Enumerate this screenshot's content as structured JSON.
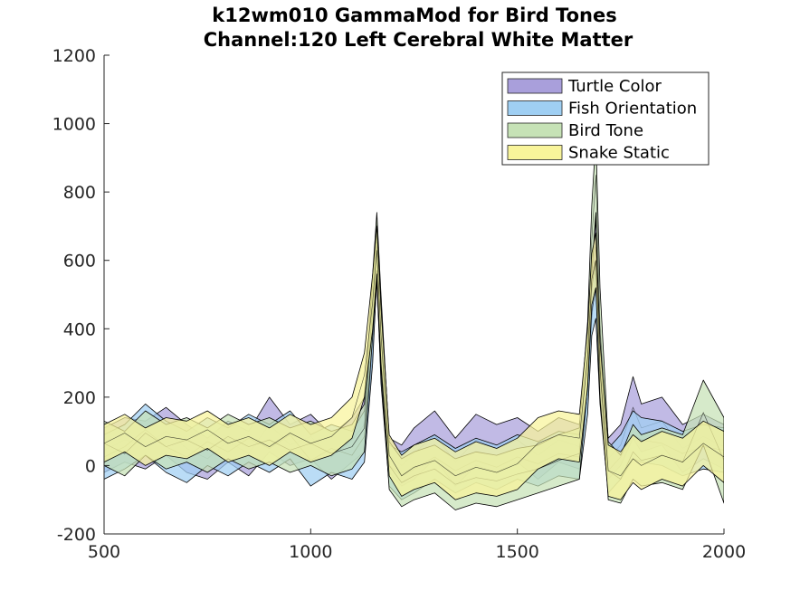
{
  "chart_data": {
    "type": "area",
    "title": [
      "k12wm010 GammaMod for Bird Tones",
      "Channel:120 Left Cerebral White Matter"
    ],
    "xlabel": "",
    "ylabel": "",
    "xlim": [
      500,
      2000
    ],
    "ylim": [
      -200,
      1200
    ],
    "xticks": [
      500,
      1000,
      1500,
      2000
    ],
    "yticks": [
      -200,
      0,
      200,
      400,
      600,
      800,
      1000,
      1200
    ],
    "xtick_labels": [
      "500",
      "1000",
      "1500",
      "2000"
    ],
    "ytick_labels": [
      "-200",
      "0",
      "200",
      "400",
      "600",
      "800",
      "1000",
      "1200"
    ],
    "grid": false,
    "legend_position": "top-right",
    "series": [
      {
        "name": "Turtle Color",
        "color": "#a99fdb",
        "x": [
          500,
          550,
          600,
          650,
          700,
          750,
          800,
          850,
          900,
          950,
          1000,
          1050,
          1100,
          1130,
          1150,
          1160,
          1170,
          1190,
          1220,
          1250,
          1300,
          1350,
          1400,
          1450,
          1500,
          1550,
          1600,
          1650,
          1670,
          1680,
          1690,
          1700,
          1720,
          1750,
          1780,
          1800,
          1850,
          1900,
          1950,
          2000
        ],
        "upper": [
          110,
          140,
          130,
          170,
          120,
          80,
          130,
          100,
          200,
          120,
          150,
          90,
          140,
          200,
          520,
          690,
          480,
          80,
          60,
          110,
          160,
          80,
          150,
          120,
          140,
          100,
          140,
          120,
          350,
          560,
          720,
          380,
          80,
          120,
          260,
          180,
          200,
          120,
          150,
          120
        ],
        "lower": [
          -20,
          10,
          -10,
          30,
          -20,
          -40,
          10,
          -30,
          40,
          0,
          20,
          -40,
          10,
          40,
          330,
          540,
          260,
          -20,
          -60,
          -40,
          20,
          -60,
          0,
          -20,
          10,
          -40,
          10,
          -10,
          200,
          430,
          560,
          220,
          -40,
          0,
          80,
          40,
          60,
          -20,
          20,
          -10
        ]
      },
      {
        "name": "Fish Orientation",
        "color": "#9fcff3",
        "x": [
          500,
          550,
          600,
          650,
          700,
          750,
          800,
          850,
          900,
          950,
          1000,
          1050,
          1100,
          1130,
          1150,
          1160,
          1170,
          1190,
          1220,
          1250,
          1300,
          1350,
          1400,
          1450,
          1500,
          1550,
          1600,
          1650,
          1670,
          1680,
          1690,
          1700,
          1720,
          1750,
          1780,
          1800,
          1850,
          1900,
          1950,
          2000
        ],
        "upper": [
          90,
          120,
          180,
          130,
          100,
          140,
          110,
          150,
          120,
          160,
          90,
          120,
          100,
          160,
          480,
          720,
          450,
          60,
          40,
          60,
          90,
          50,
          80,
          60,
          90,
          70,
          100,
          90,
          300,
          520,
          600,
          330,
          50,
          90,
          160,
          140,
          130,
          100,
          120,
          110
        ],
        "lower": [
          -40,
          -10,
          30,
          -20,
          -50,
          0,
          -30,
          10,
          -20,
          20,
          -60,
          -20,
          -40,
          10,
          300,
          560,
          240,
          -60,
          -100,
          -80,
          -40,
          -80,
          -50,
          -70,
          -40,
          -60,
          -30,
          -40,
          150,
          380,
          430,
          180,
          -80,
          -40,
          20,
          10,
          0,
          -30,
          -10,
          -20
        ]
      },
      {
        "name": "Bird Tone",
        "color": "#c6e2b6",
        "x": [
          500,
          550,
          600,
          650,
          700,
          750,
          800,
          850,
          900,
          950,
          1000,
          1050,
          1100,
          1130,
          1150,
          1160,
          1170,
          1190,
          1220,
          1250,
          1300,
          1350,
          1400,
          1450,
          1500,
          1550,
          1600,
          1650,
          1670,
          1680,
          1690,
          1700,
          1720,
          1750,
          1780,
          1800,
          1850,
          1900,
          1950,
          2000
        ],
        "upper": [
          130,
          100,
          160,
          120,
          140,
          110,
          150,
          120,
          140,
          110,
          130,
          100,
          120,
          180,
          560,
          740,
          500,
          70,
          20,
          40,
          60,
          20,
          40,
          30,
          50,
          60,
          90,
          110,
          420,
          760,
          960,
          520,
          70,
          30,
          120,
          90,
          110,
          90,
          250,
          140
        ],
        "lower": [
          0,
          -30,
          30,
          -10,
          10,
          -20,
          20,
          -10,
          10,
          -20,
          0,
          -30,
          -10,
          40,
          380,
          570,
          280,
          -70,
          -120,
          -100,
          -80,
          -130,
          -110,
          -120,
          -100,
          -80,
          -60,
          -40,
          240,
          560,
          740,
          300,
          -100,
          -110,
          -40,
          -60,
          -50,
          -70,
          60,
          -110
        ]
      },
      {
        "name": "Snake Static",
        "color": "#f8f49a",
        "x": [
          500,
          550,
          600,
          650,
          700,
          750,
          800,
          850,
          900,
          950,
          1000,
          1050,
          1100,
          1130,
          1150,
          1160,
          1170,
          1190,
          1220,
          1250,
          1300,
          1350,
          1400,
          1450,
          1500,
          1550,
          1600,
          1650,
          1670,
          1680,
          1690,
          1700,
          1720,
          1750,
          1780,
          1800,
          1850,
          1900,
          1950,
          2000
        ],
        "upper": [
          120,
          150,
          110,
          140,
          130,
          160,
          120,
          140,
          110,
          150,
          120,
          140,
          200,
          330,
          560,
          700,
          460,
          90,
          30,
          60,
          80,
          40,
          70,
          50,
          80,
          140,
          160,
          150,
          400,
          620,
          680,
          360,
          60,
          40,
          90,
          70,
          100,
          80,
          130,
          100
        ],
        "lower": [
          10,
          40,
          0,
          30,
          20,
          50,
          10,
          30,
          0,
          40,
          10,
          30,
          80,
          200,
          400,
          560,
          300,
          -30,
          -90,
          -70,
          -50,
          -100,
          -80,
          -90,
          -70,
          -10,
          20,
          10,
          230,
          470,
          520,
          200,
          -90,
          -100,
          -50,
          -70,
          -40,
          -60,
          0,
          -50
        ]
      }
    ]
  }
}
